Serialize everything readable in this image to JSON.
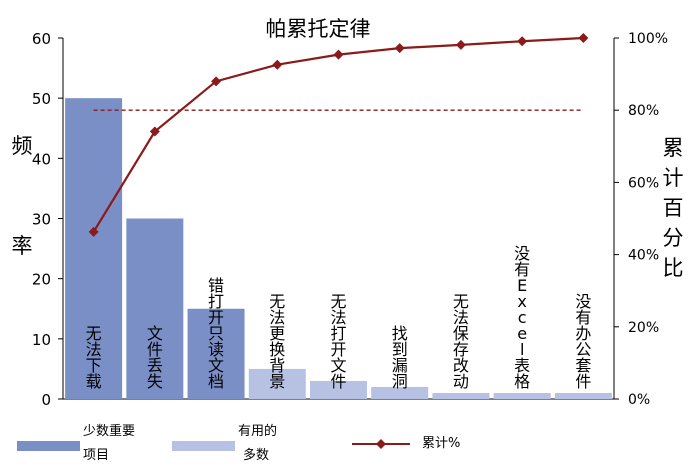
{
  "chart_data": {
    "type": "bar",
    "title": "帕累托定律",
    "ylabel_left": "频率",
    "ylabel_right": "累计百分比",
    "ylim_left": [
      0,
      60
    ],
    "ylim_right": [
      0,
      100
    ],
    "yticks_left": [
      "0",
      "10",
      "20",
      "30",
      "40",
      "50",
      "60"
    ],
    "yticks_right": [
      "0%",
      "20%",
      "40%",
      "60%",
      "80%",
      "100%"
    ],
    "categories": [
      "无法下载",
      "文件丢失",
      "错打开只读文档",
      "无法更换背景",
      "无法打开文件",
      "找到漏洞",
      "无法保存改动",
      "没有Excel表格",
      "没有办公套件"
    ],
    "series": [
      {
        "name": "频率",
        "values": [
          50,
          30,
          15,
          5,
          3,
          2,
          1,
          1,
          1
        ],
        "colors": [
          "#7b8fc7",
          "#7b8fc7",
          "#7b8fc7",
          "#b7c1e3",
          "#b7c1e3",
          "#b7c1e3",
          "#b7c1e3",
          "#b7c1e3",
          "#b7c1e3"
        ]
      },
      {
        "name": "累计%",
        "type": "line",
        "axis": "right",
        "values": [
          46.3,
          74.1,
          88.0,
          92.6,
          95.4,
          97.2,
          98.1,
          99.1,
          100
        ],
        "color": "#8b1a1a"
      }
    ],
    "reference_line": {
      "value": 80,
      "axis": "right",
      "style": "dashed",
      "color": "#8b1a1a"
    },
    "legend": {
      "placement": "bottom",
      "items": [
        {
          "label_lines": [
            "少数重要",
            "项目"
          ],
          "color": "#7b8fc7",
          "kind": "bar"
        },
        {
          "label_lines": [
            "有用的",
            "多数"
          ],
          "color": "#b7c1e3",
          "kind": "bar"
        },
        {
          "label_lines": [
            "累计%"
          ],
          "color": "#8b1a1a",
          "kind": "line"
        }
      ]
    }
  }
}
